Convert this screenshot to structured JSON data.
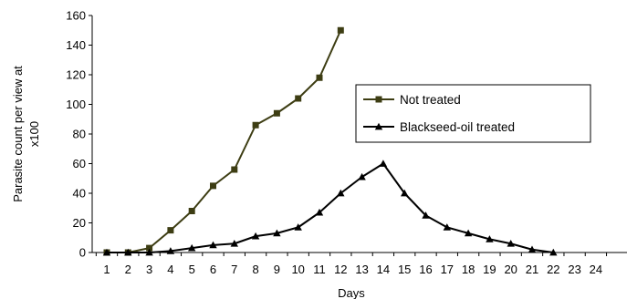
{
  "chart_data": {
    "type": "line",
    "x": [
      1,
      2,
      3,
      4,
      5,
      6,
      7,
      8,
      9,
      10,
      11,
      12,
      13,
      14,
      15,
      16,
      17,
      18,
      19,
      20,
      21,
      22,
      23,
      24
    ],
    "xlabel": "Days",
    "ylabel_lines": [
      "Parasite count per view at",
      "x100"
    ],
    "ylim": [
      0,
      160
    ],
    "yticks": [
      0,
      20,
      40,
      60,
      80,
      100,
      120,
      140,
      160
    ],
    "grid": false,
    "legend_position": "right",
    "series": [
      {
        "name": "Not treated",
        "marker": "square",
        "color": "#3d3d13",
        "x": [
          1,
          2,
          3,
          4,
          5,
          6,
          7,
          8,
          9,
          10,
          11,
          12
        ],
        "values": [
          0,
          0,
          3,
          15,
          28,
          45,
          56,
          86,
          94,
          104,
          118,
          150
        ]
      },
      {
        "name": "Blackseed-oil treated",
        "marker": "triangle",
        "color": "#000000",
        "x": [
          1,
          2,
          3,
          4,
          5,
          6,
          7,
          8,
          9,
          10,
          11,
          12,
          13,
          14,
          15,
          16,
          17,
          18,
          19,
          20,
          21,
          22
        ],
        "values": [
          0,
          0,
          0,
          1,
          3,
          5,
          6,
          11,
          13,
          17,
          27,
          40,
          51,
          60,
          40,
          25,
          17,
          13,
          9,
          6,
          2,
          0
        ]
      }
    ]
  }
}
